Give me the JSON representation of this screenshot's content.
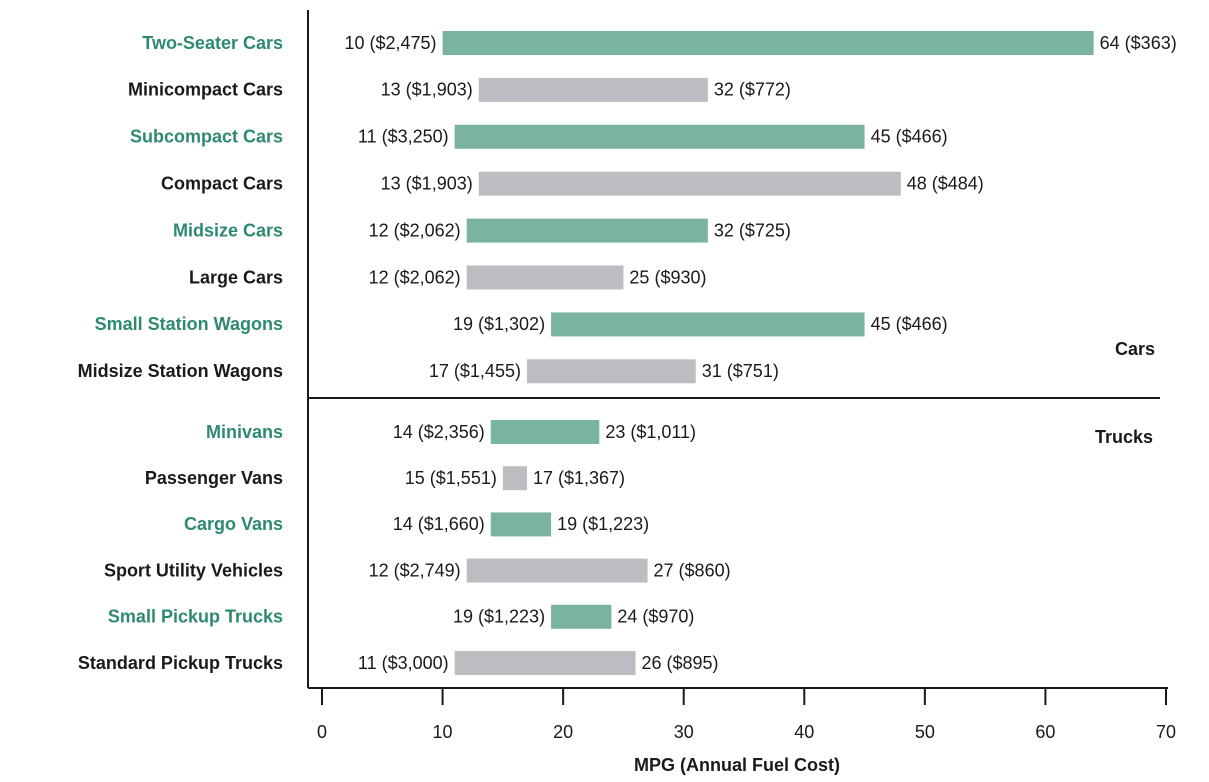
{
  "chart_data": {
    "type": "range_bar",
    "categories": [
      "Two-Seater Cars",
      "Minicompact Cars",
      "Subcompact Cars",
      "Compact Cars",
      "Midsize Cars",
      "Large Cars",
      "Small Station Wagons",
      "Midsize Station Wagons",
      "Minivans",
      "Passenger Vans",
      "Cargo Vans",
      "Sport Utility Vehicles",
      "Small Pickup Trucks",
      "Standard Pickup Trucks"
    ],
    "low": {
      "values": [
        10,
        13,
        11,
        13,
        12,
        12,
        19,
        17,
        14,
        15,
        14,
        12,
        19,
        11
      ],
      "value_labels": [
        "10 ($2,475)",
        "13 ($1,903)",
        "11 ($3,250)",
        "13 ($1,903)",
        "12 ($2,062)",
        "12 ($2,062)",
        "19 ($1,302)",
        "17 ($1,455)",
        "14 ($2,356)",
        "15 ($1,551)",
        "14 ($1,660)",
        "12 ($2,749)",
        "19 ($1,223)",
        "11 ($3,000)"
      ]
    },
    "high": {
      "values": [
        64,
        32,
        45,
        48,
        32,
        25,
        45,
        31,
        23,
        17,
        19,
        27,
        24,
        26
      ],
      "value_labels": [
        "64 ($363)",
        "32 ($772)",
        "45 ($466)",
        "48 ($484)",
        "32 ($725)",
        "25 ($930)",
        "45 ($466)",
        "31 ($751)",
        "23 ($1,011)",
        "17 ($1,367)",
        "19 ($1,223)",
        "27 ($860)",
        "24 ($970)",
        "26 ($895)"
      ]
    },
    "colors": [
      "#7bb3a3",
      "#bcbdc1",
      "#7bb3a3",
      "#bcbdc1",
      "#7bb3a3",
      "#bcbdc1",
      "#7bb3a3",
      "#bcbdc1",
      "#7bb3a3",
      "#bcbdc1",
      "#7bb3a3",
      "#bcbdc1",
      "#7bb3a3",
      "#bcbdc1"
    ],
    "label_colors": [
      "#2e8a6e",
      "#1a1a1a",
      "#2e8a6e",
      "#1a1a1a",
      "#2e8a6e",
      "#1a1a1a",
      "#2e8a6e",
      "#1a1a1a",
      "#2e8a6e",
      "#1a1a1a",
      "#2e8a6e",
      "#1a1a1a",
      "#2e8a6e",
      "#1a1a1a"
    ],
    "groups": [
      "Cars",
      "Trucks"
    ],
    "xlabel": "MPG (Annual Fuel Cost)",
    "xlim": [
      0,
      70
    ],
    "xticks": [
      0,
      10,
      20,
      30,
      40,
      50,
      60,
      70
    ]
  }
}
